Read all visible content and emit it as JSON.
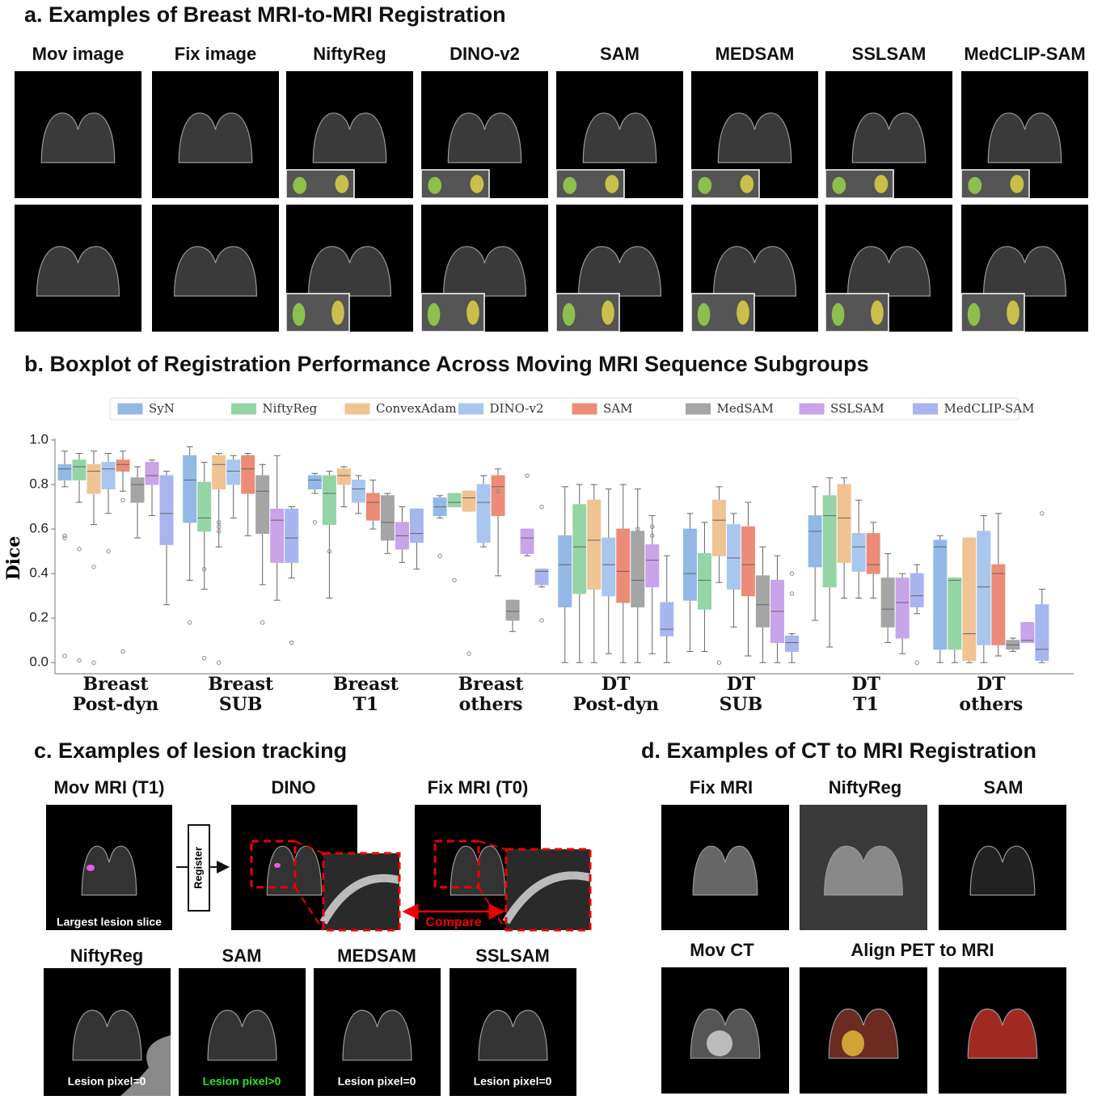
{
  "panel_a": {
    "title": "a. Examples of Breast MRI-to-MRI Registration",
    "columns": [
      "Mov image",
      "Fix image",
      "NiftyReg",
      "DINO-v2",
      "SAM",
      "MEDSAM",
      "SSLSAM",
      "MedCLIP-SAM"
    ]
  },
  "chart_data": {
    "type": "box",
    "title": "b. Boxplot of Registration Performance Across Moving MRI Sequence Subgroups",
    "y_label": "Dice",
    "categories": [
      [
        "Breast",
        "Post-dyn"
      ],
      [
        "Breast",
        "SUB"
      ],
      [
        "Breast",
        "T1"
      ],
      [
        "Breast",
        "others"
      ],
      [
        "DT",
        "Post-dyn"
      ],
      [
        "DT",
        "SUB"
      ],
      [
        "DT",
        "T1"
      ],
      [
        "DT",
        "others"
      ]
    ],
    "ylim": [
      -0.05,
      1.0
    ],
    "yticks": [
      {
        "value": 0,
        "label": "0.0"
      },
      {
        "value": 0.2,
        "label": "0.2"
      },
      {
        "value": 0.4,
        "label": "0.4"
      },
      {
        "value": 0.6,
        "label": "0.6"
      },
      {
        "value": 0.8,
        "label": "0.8"
      },
      {
        "value": 1,
        "label": "1.0"
      }
    ],
    "grid": false,
    "legend": "top",
    "series": [
      {
        "name": "SyN",
        "color": "#94b8e6",
        "values": [
          [
            0.79,
            0.82,
            0.87,
            0.89,
            0.95
          ],
          [
            0.37,
            0.63,
            0.82,
            0.93,
            0.97
          ],
          [
            0.76,
            0.78,
            0.82,
            0.84,
            0.85
          ],
          [
            0.65,
            0.66,
            0.7,
            0.74,
            0.75
          ],
          [
            0.0,
            0.25,
            0.44,
            0.57,
            0.79
          ],
          [
            0.05,
            0.28,
            0.4,
            0.6,
            0.67
          ],
          [
            0.19,
            0.43,
            0.59,
            0.66,
            0.79
          ],
          [
            0.0,
            0.06,
            0.52,
            0.55,
            0.57
          ]
        ],
        "outliers": [
          [
            0.57,
            0.56,
            0.03
          ],
          [
            0.18
          ],
          [
            0.63
          ],
          [
            0.48
          ],
          [],
          [],
          [],
          []
        ]
      },
      {
        "name": "NiftyReg",
        "color": "#95d4a5",
        "values": [
          [
            0.72,
            0.82,
            0.88,
            0.91,
            0.94
          ],
          [
            0.33,
            0.59,
            0.65,
            0.81,
            0.9
          ],
          [
            0.29,
            0.62,
            0.76,
            0.84,
            0.86
          ],
          [
            0.7,
            0.7,
            0.72,
            0.76,
            0.76
          ],
          [
            0.0,
            0.31,
            0.52,
            0.71,
            0.8
          ],
          [
            0.05,
            0.24,
            0.37,
            0.49,
            0.63
          ],
          [
            0.07,
            0.34,
            0.66,
            0.75,
            0.83
          ],
          [
            0.0,
            0.06,
            0.37,
            0.38,
            0.38
          ]
        ],
        "outliers": [
          [
            0.51,
            0.01
          ],
          [
            0.42,
            0.02
          ],
          [
            0.5
          ],
          [
            0.37
          ],
          [],
          [],
          [],
          []
        ]
      },
      {
        "name": "ConvexAdam",
        "color": "#f0c393",
        "values": [
          [
            0.62,
            0.76,
            0.86,
            0.89,
            0.95
          ],
          [
            0.52,
            0.78,
            0.89,
            0.93,
            0.94
          ],
          [
            0.7,
            0.8,
            0.84,
            0.87,
            0.88
          ],
          [
            0.68,
            0.68,
            0.74,
            0.77,
            0.77
          ],
          [
            0.0,
            0.33,
            0.55,
            0.73,
            0.8
          ],
          [
            0.36,
            0.48,
            0.64,
            0.73,
            0.79
          ],
          [
            0.29,
            0.45,
            0.65,
            0.8,
            0.83
          ],
          [
            0.0,
            0.01,
            0.13,
            0.56,
            0.56
          ]
        ],
        "outliers": [
          [
            0.43,
            0.0
          ],
          [
            0.63,
            0.61,
            0.59,
            0.0
          ],
          [],
          [
            0.04
          ],
          [],
          [
            0.0
          ],
          [],
          []
        ]
      },
      {
        "name": "DINO-v2",
        "color": "#a9c6ee",
        "values": [
          [
            0.67,
            0.78,
            0.87,
            0.9,
            0.94
          ],
          [
            0.65,
            0.8,
            0.86,
            0.91,
            0.93
          ],
          [
            0.67,
            0.72,
            0.78,
            0.82,
            0.84
          ],
          [
            0.52,
            0.54,
            0.72,
            0.8,
            0.84
          ],
          [
            0.04,
            0.3,
            0.44,
            0.56,
            0.78
          ],
          [
            0.16,
            0.33,
            0.47,
            0.62,
            0.67
          ],
          [
            0.29,
            0.41,
            0.52,
            0.58,
            0.73
          ],
          [
            0.0,
            0.08,
            0.34,
            0.59,
            0.66
          ]
        ],
        "outliers": [
          [
            0.5
          ],
          [],
          [],
          [],
          [],
          [],
          [],
          []
        ]
      },
      {
        "name": "SAM",
        "color": "#ec8c78",
        "values": [
          [
            0.77,
            0.86,
            0.89,
            0.91,
            0.95
          ],
          [
            0.57,
            0.76,
            0.87,
            0.93,
            0.94
          ],
          [
            0.6,
            0.64,
            0.72,
            0.76,
            0.82
          ],
          [
            0.39,
            0.66,
            0.79,
            0.84,
            0.87
          ],
          [
            0.0,
            0.27,
            0.41,
            0.6,
            0.8
          ],
          [
            0.03,
            0.3,
            0.44,
            0.61,
            0.72
          ],
          [
            0.29,
            0.4,
            0.44,
            0.58,
            0.63
          ],
          [
            0.03,
            0.08,
            0.4,
            0.44,
            0.67
          ]
        ],
        "outliers": [
          [
            0.73,
            0.05
          ],
          [],
          [],
          [
            0.77
          ],
          [],
          [],
          [],
          []
        ]
      },
      {
        "name": "MedSAM",
        "color": "#a5a5a5",
        "values": [
          [
            0.56,
            0.72,
            0.8,
            0.83,
            0.88
          ],
          [
            0.35,
            0.58,
            0.77,
            0.84,
            0.89
          ],
          [
            0.49,
            0.55,
            0.63,
            0.75,
            0.76
          ],
          [
            0.14,
            0.19,
            0.23,
            0.28,
            0.28
          ],
          [
            0.0,
            0.25,
            0.37,
            0.59,
            0.78
          ],
          [
            0.0,
            0.16,
            0.26,
            0.39,
            0.52
          ],
          [
            0.09,
            0.16,
            0.24,
            0.38,
            0.49
          ],
          [
            0.05,
            0.06,
            0.08,
            0.1,
            0.11
          ]
        ],
        "outliers": [
          [],
          [
            0.18
          ],
          [],
          [],
          [
            0.6
          ],
          [],
          [],
          []
        ]
      },
      {
        "name": "SSLSAM",
        "color": "#c8a4e8",
        "values": [
          [
            0.66,
            0.8,
            0.84,
            0.9,
            0.91
          ],
          [
            0.28,
            0.45,
            0.64,
            0.69,
            0.93
          ],
          [
            0.45,
            0.51,
            0.57,
            0.63,
            0.7
          ],
          [
            0.48,
            0.49,
            0.56,
            0.6,
            0.6
          ],
          [
            0.04,
            0.34,
            0.46,
            0.53,
            0.66
          ],
          [
            0.0,
            0.09,
            0.23,
            0.37,
            0.48
          ],
          [
            0.04,
            0.11,
            0.27,
            0.38,
            0.4
          ],
          [
            0.09,
            0.09,
            0.1,
            0.18,
            0.18
          ]
        ],
        "outliers": [
          [],
          [],
          [],
          [
            0.84
          ],
          [
            0.61,
            0.57
          ],
          [],
          [],
          []
        ]
      },
      {
        "name": "MedCLIP-SAM",
        "color": "#a8b5ee",
        "values": [
          [
            0.26,
            0.53,
            0.67,
            0.84,
            0.86
          ],
          [
            0.38,
            0.45,
            0.56,
            0.69,
            0.7
          ],
          [
            0.42,
            0.54,
            0.58,
            0.69,
            0.69
          ],
          [
            0.34,
            0.35,
            0.41,
            0.42,
            0.42
          ],
          [
            0.0,
            0.12,
            0.15,
            0.27,
            0.48
          ],
          [
            0.0,
            0.05,
            0.09,
            0.12,
            0.13
          ],
          [
            0.22,
            0.25,
            0.3,
            0.4,
            0.44
          ],
          [
            0.0,
            0.01,
            0.06,
            0.26,
            0.33
          ]
        ],
        "outliers": [
          [],
          [
            0.09
          ],
          [],
          [
            0.7,
            0.19
          ],
          [],
          [
            0.4,
            0.31
          ],
          [
            0.0
          ],
          [
            0.67
          ]
        ]
      }
    ]
  },
  "panel_c": {
    "title": "c. Examples of lesion tracking",
    "top_columns": [
      "Mov MRI (T1)",
      "DINO",
      "Fix MRI (T0)"
    ],
    "register": "Register",
    "compare": "Compare",
    "mov_caption": "Largest lesion slice",
    "bottom_columns": [
      "NiftyReg",
      "SAM",
      "MEDSAM",
      "SSLSAM"
    ],
    "bottom_captions": [
      "Lesion pixel=0",
      "Lesion pixel>0",
      "Lesion pixel=0",
      "Lesion pixel=0"
    ]
  },
  "panel_d": {
    "title": "d. Examples of CT to MRI Registration",
    "top_columns": [
      "Fix MRI",
      "NiftyReg",
      "SAM"
    ],
    "bottom_columns": [
      "Mov CT",
      "Align PET to MRI"
    ]
  }
}
